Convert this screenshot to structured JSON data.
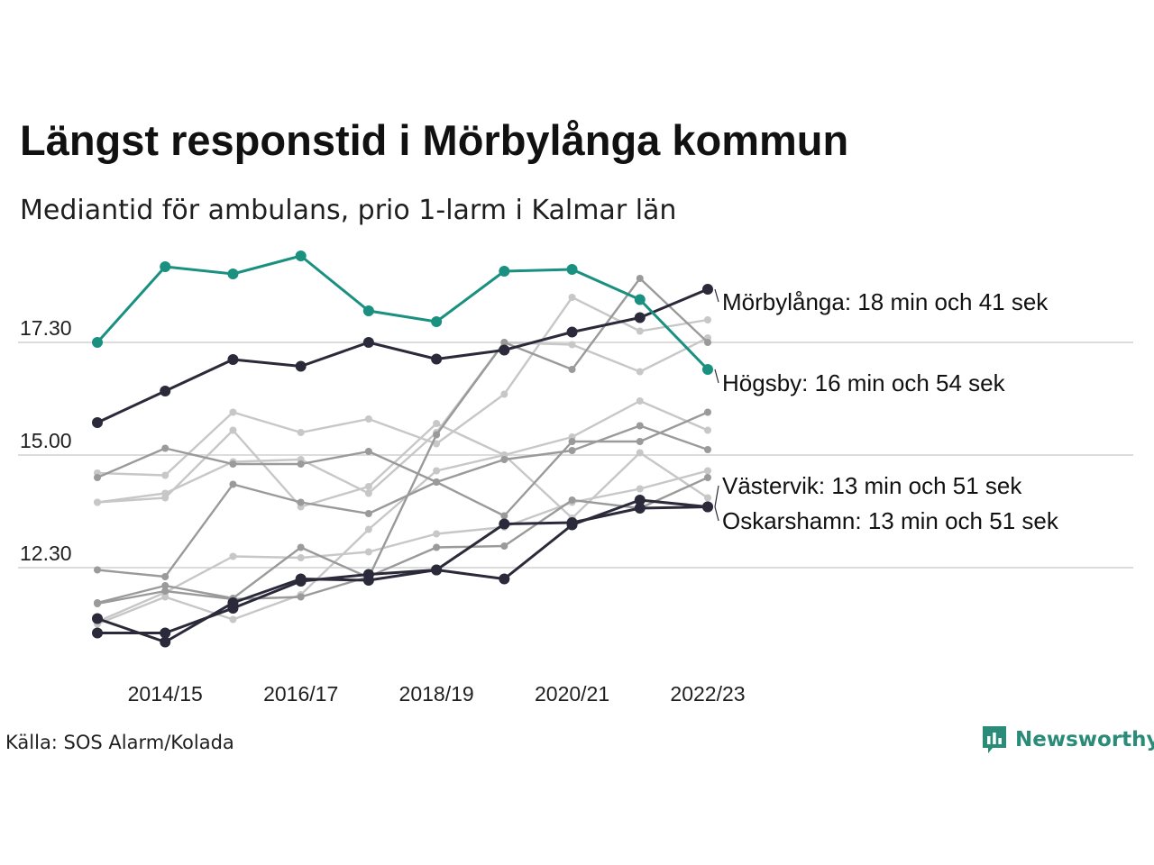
{
  "title": "Längst responstid i Mörbylånga kommun",
  "subtitle": "Mediantid för ambulans, prio 1-larm i Kalmar län",
  "source": "Källa: SOS Alarm/Kolada",
  "brand": {
    "name": "Newsworthy",
    "icon": "newsworthy-logo-icon",
    "color": "#2a8c78"
  },
  "chart_data": {
    "type": "line",
    "x": [
      "2013/14",
      "2014/15",
      "2015/16",
      "2016/17",
      "2017/18",
      "2018/19",
      "2019/20",
      "2020/21",
      "2021/22",
      "2022/23"
    ],
    "x_tick_labels": [
      "2014/15",
      "2016/17",
      "2018/19",
      "2020/21",
      "2022/23"
    ],
    "y_ticks": [
      {
        "value": 12.5,
        "label": "12.30"
      },
      {
        "value": 15.0,
        "label": "15.00"
      },
      {
        "value": 17.5,
        "label": "17.30"
      }
    ],
    "ylim": [
      10.2,
      19.5
    ],
    "grid": "horizontal",
    "colors": {
      "highlight": "#1a9080",
      "dark": "#2b2a3a",
      "grey": "#9a9a9a",
      "light_grey": "#c7c7c7"
    },
    "series": [
      {
        "name": "Högsby",
        "label": "Högsby: 16 min och 54 sek",
        "color": "#1a9080",
        "highlight": true,
        "values": [
          17.5,
          19.18,
          19.02,
          19.42,
          18.2,
          17.96,
          19.08,
          19.12,
          18.45,
          16.9
        ]
      },
      {
        "name": "Mörbylånga",
        "label": "Mörbylånga: 18 min och 41 sek",
        "color": "#2b2a3a",
        "highlight": true,
        "values": [
          15.72,
          16.42,
          17.12,
          16.97,
          17.5,
          17.13,
          17.33,
          17.73,
          18.05,
          18.68
        ]
      },
      {
        "name": "Västervik",
        "label": "Västervik: 13 min och 51 sek",
        "color": "#2b2a3a",
        "highlight": true,
        "values": [
          11.05,
          11.05,
          11.6,
          12.2,
          12.35,
          12.45,
          12.25,
          13.45,
          14.0,
          13.85
        ]
      },
      {
        "name": "Oskarshamn",
        "label": "Oskarshamn: 13 min och 51 sek",
        "color": "#2b2a3a",
        "highlight": true,
        "values": [
          11.37,
          10.85,
          11.72,
          12.25,
          12.22,
          12.45,
          13.47,
          13.5,
          13.82,
          13.85
        ]
      },
      {
        "name": "",
        "color": "#9a9a9a",
        "values": [
          14.5,
          15.15,
          14.8,
          14.8,
          15.08,
          14.4,
          13.65,
          15.3,
          15.3,
          15.95
        ]
      },
      {
        "name": "",
        "color": "#9a9a9a",
        "values": [
          12.45,
          12.3,
          14.35,
          13.95,
          13.7,
          14.4,
          14.9,
          15.1,
          15.65,
          15.12
        ]
      },
      {
        "name": "",
        "color": "#9a9a9a",
        "values": [
          11.72,
          12.1,
          11.82,
          12.95,
          12.28,
          15.45,
          17.5,
          16.9,
          18.92,
          17.5
        ]
      },
      {
        "name": "",
        "color": "#9a9a9a",
        "values": [
          11.7,
          11.98,
          11.8,
          11.85,
          12.3,
          12.95,
          12.98,
          14.0,
          13.82,
          14.5
        ]
      },
      {
        "name": "",
        "color": "#c7c7c7",
        "values": [
          14.6,
          14.55,
          15.95,
          15.5,
          15.8,
          15.25,
          16.35,
          18.5,
          17.75,
          18.0
        ]
      },
      {
        "name": "",
        "color": "#c7c7c7",
        "values": [
          13.95,
          14.05,
          15.55,
          13.85,
          14.3,
          15.7,
          15.0,
          13.6,
          15.05,
          14.05
        ]
      },
      {
        "name": "",
        "color": "#c7c7c7",
        "values": [
          11.25,
          11.85,
          11.35,
          11.9,
          13.35,
          14.65,
          15.0,
          15.4,
          16.2,
          15.55
        ]
      },
      {
        "name": "",
        "color": "#c7c7c7",
        "values": [
          11.3,
          11.95,
          12.75,
          12.72,
          12.85,
          13.25,
          13.4,
          13.95,
          14.25,
          14.65
        ]
      },
      {
        "name": "",
        "color": "#c7c7c7",
        "values": [
          13.95,
          14.15,
          14.85,
          14.9,
          14.15,
          15.5,
          17.5,
          17.45,
          16.85,
          17.6
        ]
      }
    ]
  }
}
